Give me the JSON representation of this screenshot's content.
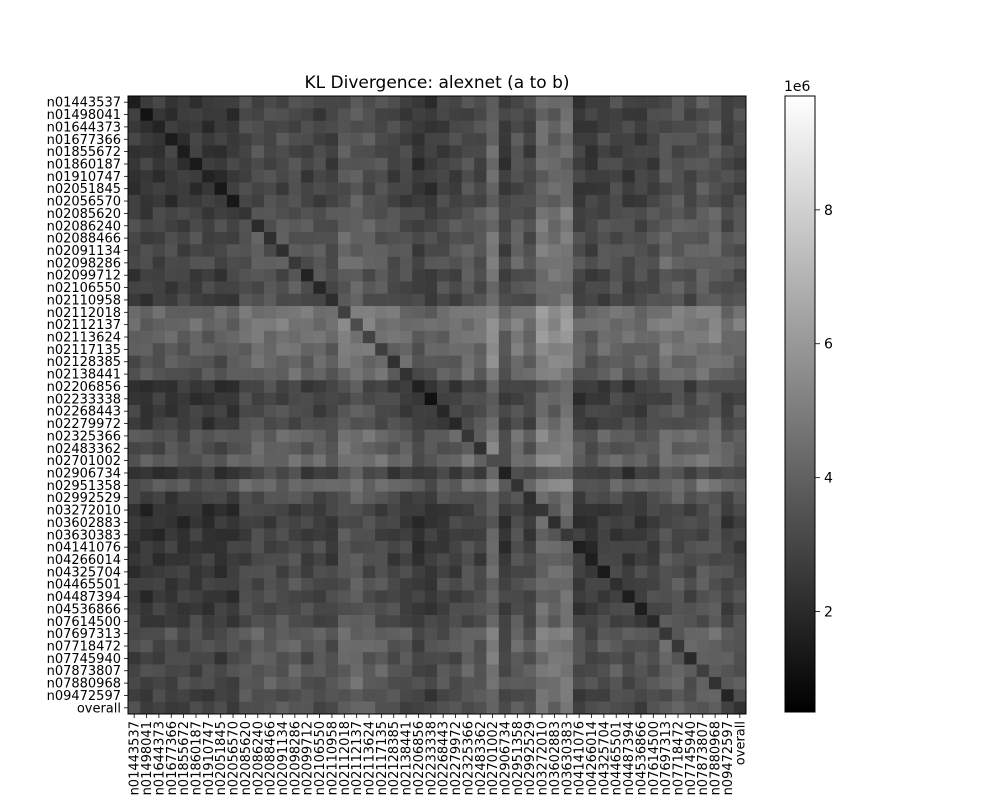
{
  "chart_data": {
    "type": "heatmap",
    "title": "KL Divergence: alexnet (a to b)",
    "xlabel": "",
    "ylabel": "",
    "labels": [
      "n01443537",
      "n01498041",
      "n01644373",
      "n01677366",
      "n01855672",
      "n01860187",
      "n01910747",
      "n02051845",
      "n02056570",
      "n02085620",
      "n02086240",
      "n02088466",
      "n02091134",
      "n02098286",
      "n02099712",
      "n02106550",
      "n02110958",
      "n02112018",
      "n02112137",
      "n02113624",
      "n02117135",
      "n02128385",
      "n02138441",
      "n02206856",
      "n02233338",
      "n02268443",
      "n02279972",
      "n02325366",
      "n02483362",
      "n02701002",
      "n02906734",
      "n02951358",
      "n02992529",
      "n03272010",
      "n03602883",
      "n03630383",
      "n04141076",
      "n04266014",
      "n04325704",
      "n04465501",
      "n04487394",
      "n04536866",
      "n07614500",
      "n07697313",
      "n07718472",
      "n07745940",
      "n07873807",
      "n07880968",
      "n09472597",
      "overall"
    ],
    "row_values_summary": [
      2.6,
      2.4,
      2.5,
      2.6,
      2.5,
      2.6,
      2.5,
      2.4,
      2.5,
      3.2,
      3.4,
      3.5,
      3.6,
      3.8,
      3.0,
      3.1,
      2.9,
      5.6,
      5.8,
      5.4,
      5.0,
      4.6,
      4.4,
      2.2,
      2.3,
      2.7,
      2.8,
      4.4,
      4.0,
      4.8,
      2.3,
      4.6,
      3.0,
      2.0,
      2.0,
      2.1,
      2.4,
      2.4,
      2.6,
      2.8,
      2.5,
      2.6,
      2.8,
      4.0,
      3.9,
      3.4,
      3.7,
      3.6,
      3.0,
      3.2
    ],
    "col_values_summary": [
      2.5,
      2.4,
      2.5,
      2.6,
      2.5,
      2.7,
      2.5,
      2.4,
      2.6,
      3.6,
      3.9,
      3.8,
      3.8,
      4.0,
      3.4,
      3.5,
      3.2,
      4.6,
      4.8,
      4.2,
      4.0,
      3.4,
      3.3,
      2.4,
      2.6,
      3.2,
      3.3,
      4.0,
      3.6,
      5.8,
      2.7,
      4.2,
      3.4,
      6.0,
      5.6,
      6.2,
      2.8,
      2.6,
      3.2,
      3.5,
      3.0,
      3.1,
      3.3,
      4.4,
      4.3,
      3.8,
      4.5,
      4.6,
      3.4,
      3.6
    ],
    "value_scale": "1e6",
    "vmin": 0.5,
    "vmax": 9.7,
    "colorbar": {
      "scale_label": "1e6",
      "ticks": [
        "2",
        "4",
        "6",
        "8"
      ],
      "tick_values": [
        2,
        4,
        6,
        8
      ]
    },
    "colormap": "gray",
    "grid": false,
    "legend": "colorbar-right"
  }
}
